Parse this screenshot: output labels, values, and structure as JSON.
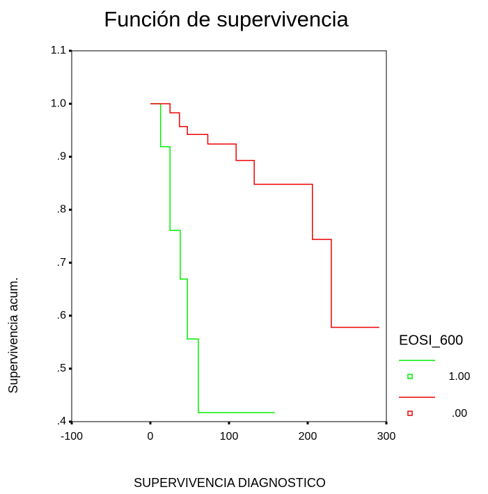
{
  "chart_data": {
    "type": "step",
    "title": "Función de supervivencia",
    "x_label": "SUPERVIVENCIA DIAGNOSTICO",
    "y_label": "Supervivencia acum.",
    "legend_title": "EOSI_600",
    "xlim": [
      -100,
      300
    ],
    "xticks": [
      -100,
      0,
      100,
      200,
      300
    ],
    "ylim": [
      0.4,
      1.1
    ],
    "yticks": [
      {
        "value": 0.4,
        "label": ".4"
      },
      {
        "value": 0.5,
        "label": ".5"
      },
      {
        "value": 0.6,
        "label": ".6"
      },
      {
        "value": 0.7,
        "label": ".7"
      },
      {
        "value": 0.8,
        "label": ".8"
      },
      {
        "value": 0.9,
        "label": ".9"
      },
      {
        "value": 1,
        "label": "1.0"
      },
      1.1
    ],
    "series": [
      {
        "name": "1.00",
        "color": "#00ee00",
        "x": [
          0,
          13,
          25,
          38,
          47,
          61,
          158
        ],
        "values": [
          1,
          0.919,
          0.761,
          0.669,
          0.556,
          0.417,
          0.417
        ]
      },
      {
        "name": ".00",
        "color": "#ee0000",
        "x": [
          0,
          25,
          37,
          47,
          73,
          109,
          132,
          206,
          230,
          291
        ],
        "values": [
          1,
          0.983,
          0.957,
          0.942,
          0.924,
          0.893,
          0.848,
          0.744,
          0.578,
          0.578
        ]
      }
    ]
  }
}
